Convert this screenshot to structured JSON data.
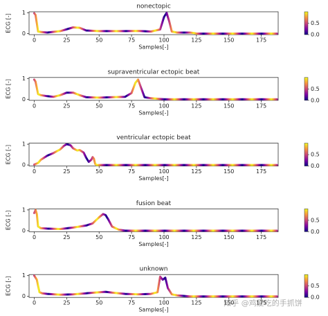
{
  "chart_data": [
    {
      "type": "line",
      "title": "nonectopic",
      "xlabel": "Samples[-]",
      "ylabel": "ECG [-]",
      "x": [
        0,
        1,
        3,
        5,
        10,
        20,
        30,
        35,
        40,
        50,
        60,
        70,
        80,
        90,
        97,
        100,
        102,
        104,
        106,
        110,
        120,
        123,
        125,
        187
      ],
      "series": [
        {
          "values": [
            0.98,
            0.9,
            0.1,
            0.08,
            0.05,
            0.12,
            0.3,
            0.28,
            0.15,
            0.12,
            0.12,
            0.12,
            0.13,
            0.1,
            0.2,
            0.8,
            1.0,
            0.6,
            0.1,
            0.05,
            0.05,
            0.03,
            0,
            0
          ]
        }
      ],
      "xlim": [
        -4,
        188
      ],
      "ylim": [
        -0.05,
        1.05
      ],
      "xticks": [
        0,
        25,
        50,
        75,
        100,
        125,
        150,
        175
      ],
      "yticks": [
        0,
        1
      ],
      "colormap": [
        "#0d0887",
        "#7e03a8",
        "#cc4778",
        "#f89540",
        "#f0f921"
      ],
      "clim": [
        0,
        1
      ],
      "cticks": [
        {
          "value": 0,
          "label": "0.0"
        },
        {
          "value": 0.5,
          "label": "0.5"
        }
      ]
    },
    {
      "type": "line",
      "title": "supraventricular ectopic beat",
      "xlabel": "Samples[-]",
      "ylabel": "ECG [-]",
      "x": [
        0,
        1,
        3,
        5,
        10,
        15,
        20,
        25,
        30,
        35,
        40,
        50,
        60,
        70,
        75,
        78,
        80,
        82,
        85,
        90,
        100,
        187
      ],
      "series": [
        {
          "values": [
            0.95,
            0.85,
            0.25,
            0.2,
            0.15,
            0.12,
            0.2,
            0.32,
            0.32,
            0.2,
            0.1,
            0.08,
            0.1,
            0.12,
            0.3,
            0.8,
            0.95,
            0.6,
            0.1,
            0.05,
            0,
            0
          ]
        }
      ],
      "xlim": [
        -4,
        188
      ],
      "ylim": [
        -0.05,
        1.05
      ],
      "xticks": [
        0,
        25,
        50,
        75,
        100,
        125,
        150,
        175
      ],
      "yticks": [
        0,
        1
      ],
      "colormap": [
        "#0d0887",
        "#7e03a8",
        "#cc4778",
        "#f89540",
        "#f0f921"
      ],
      "clim": [
        0,
        1
      ],
      "cticks": [
        {
          "value": 0,
          "label": "0.0"
        },
        {
          "value": 0.5,
          "label": "0.5"
        }
      ]
    },
    {
      "type": "line",
      "title": "ventricular ectopic beat",
      "xlabel": "Samples[-]",
      "ylabel": "ECG [-]",
      "x": [
        0,
        3,
        5,
        10,
        15,
        20,
        23,
        25,
        28,
        30,
        33,
        35,
        38,
        40,
        42,
        44,
        45,
        46,
        47,
        48,
        50,
        187
      ],
      "series": [
        {
          "values": [
            0.02,
            0.1,
            0.25,
            0.45,
            0.58,
            0.75,
            0.93,
            1.0,
            0.95,
            0.8,
            0.7,
            0.72,
            0.6,
            0.35,
            0.15,
            0.25,
            0.38,
            0.3,
            0.05,
            0,
            0,
            0
          ]
        }
      ],
      "xlim": [
        -4,
        188
      ],
      "ylim": [
        -0.05,
        1.05
      ],
      "xticks": [
        0,
        25,
        50,
        75,
        100,
        125,
        150,
        175
      ],
      "yticks": [
        0,
        1
      ],
      "colormap": [
        "#0d0887",
        "#7e03a8",
        "#cc4778",
        "#f89540",
        "#f0f921"
      ],
      "clim": [
        0,
        1
      ],
      "cticks": [
        {
          "value": 0,
          "label": "0.0"
        },
        {
          "value": 0.5,
          "label": "0.5"
        }
      ]
    },
    {
      "type": "line",
      "title": "fusion beat",
      "xlabel": "Samples[-]",
      "ylabel": "ECG [-]",
      "x": [
        0,
        1,
        2,
        3,
        5,
        10,
        20,
        30,
        40,
        45,
        50,
        53,
        55,
        57,
        60,
        65,
        70,
        187
      ],
      "series": [
        {
          "values": [
            0.85,
            1.0,
            0.8,
            0.2,
            0.12,
            0.1,
            0.08,
            0.15,
            0.25,
            0.35,
            0.65,
            0.8,
            0.75,
            0.55,
            0.2,
            0.05,
            0,
            0
          ]
        }
      ],
      "xlim": [
        -4,
        188
      ],
      "ylim": [
        -0.05,
        1.05
      ],
      "xticks": [
        0,
        25,
        50,
        75,
        100,
        125,
        150,
        175
      ],
      "yticks": [
        0,
        1
      ],
      "colormap": [
        "#0d0887",
        "#7e03a8",
        "#cc4778",
        "#f89540",
        "#f0f921"
      ],
      "clim": [
        0,
        1
      ],
      "cticks": [
        {
          "value": 0,
          "label": "0.0"
        },
        {
          "value": 0.5,
          "label": "0.5"
        }
      ]
    },
    {
      "type": "line",
      "title": "unknown",
      "xlabel": "Samples[-]",
      "ylabel": "ECG [-]",
      "x": [
        0,
        2,
        4,
        6,
        10,
        20,
        30,
        40,
        50,
        55,
        60,
        70,
        80,
        90,
        95,
        97,
        99,
        101,
        103,
        106,
        110,
        120,
        187
      ],
      "series": [
        {
          "values": [
            1.0,
            0.8,
            0.2,
            0.15,
            0.12,
            0.08,
            0.1,
            0.15,
            0.2,
            0.22,
            0.18,
            0.12,
            0.1,
            0.12,
            0.2,
            0.95,
            0.8,
            0.9,
            0.4,
            0.1,
            0.05,
            0,
            0
          ]
        }
      ],
      "xlim": [
        -4,
        188
      ],
      "ylim": [
        -0.05,
        1.05
      ],
      "xticks": [
        0,
        25,
        50,
        75,
        100,
        125,
        150,
        175
      ],
      "yticks": [
        0,
        1
      ],
      "colormap": [
        "#0d0887",
        "#7e03a8",
        "#cc4778",
        "#f89540",
        "#f0f921"
      ],
      "clim": [
        0,
        1
      ],
      "cticks": [
        {
          "value": 0,
          "label": "0.0"
        },
        {
          "value": 0.5,
          "label": "0.5"
        }
      ]
    }
  ],
  "watermark": "知乎 @鸡爱吃的手抓饼"
}
